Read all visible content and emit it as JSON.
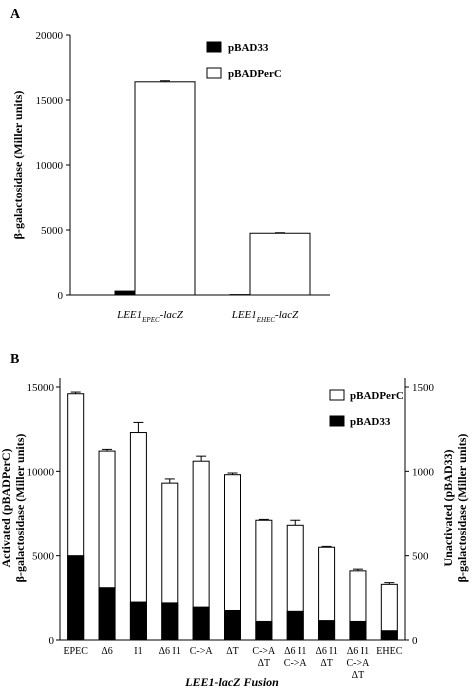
{
  "chart_data": [
    {
      "panel_label": "A",
      "type": "bar",
      "ylabel": "β-galactosidase (Miller units)",
      "ylim": [
        0,
        20000
      ],
      "yticks": [
        "0",
        "5000",
        "10000",
        "15000",
        "20000"
      ],
      "categories": [
        {
          "base": "LEE1",
          "sub": "EPEC",
          "suffix": "-lacZ"
        },
        {
          "base": "LEE1",
          "sub": "EHEC",
          "suffix": "-lacZ"
        }
      ],
      "series": [
        {
          "name": "pBAD33",
          "fill": "#000000",
          "values": [
            300,
            30
          ],
          "errors": [
            0,
            0
          ]
        },
        {
          "name": "pBADPerC",
          "fill": "#ffffff",
          "values": [
            16400,
            4750
          ],
          "errors": [
            80,
            40
          ]
        }
      ],
      "legend_position": "top-right",
      "grid": false
    },
    {
      "panel_label": "B",
      "type": "bar",
      "xlabel": "LEE1-lacZ Fusion",
      "ylabel_left": [
        "Activated (pBADPerC)",
        "β-galactosidase (Miller units)"
      ],
      "ylabel_right": [
        "Unactivated (pBAD33)",
        "β-galactosidase (Miller units)"
      ],
      "ylim_left": [
        0,
        15000
      ],
      "ylim_right": [
        0,
        1500
      ],
      "yticks_left": [
        "0",
        "5000",
        "10000",
        "15000"
      ],
      "yticks_right": [
        "0",
        "500",
        "1000",
        "1500"
      ],
      "categories": [
        [
          "EPEC"
        ],
        [
          "Δ6"
        ],
        [
          "I1"
        ],
        [
          "Δ6 I1"
        ],
        [
          "C->A"
        ],
        [
          "ΔT"
        ],
        [
          "C->A",
          "ΔT"
        ],
        [
          "Δ6 I1",
          "C->A"
        ],
        [
          "Δ6 I1",
          "ΔT"
        ],
        [
          "Δ6 I1",
          "C->A",
          "ΔT"
        ],
        [
          "EHEC"
        ]
      ],
      "series": [
        {
          "name": "pBADPerC",
          "axis": "left",
          "fill": "#ffffff",
          "values": [
            14600,
            11200,
            12300,
            9300,
            10600,
            9800,
            7100,
            6800,
            5500,
            4100,
            3300
          ],
          "errors": [
            100,
            100,
            600,
            250,
            300,
            100,
            50,
            300,
            50,
            100,
            100
          ]
        },
        {
          "name": "pBAD33",
          "axis": "right",
          "fill": "#000000",
          "values": [
            500,
            310,
            225,
            220,
            195,
            175,
            110,
            170,
            115,
            110,
            55
          ],
          "errors": [
            0,
            0,
            0,
            0,
            0,
            0,
            0,
            0,
            0,
            0,
            0
          ]
        }
      ],
      "legend_position": "top-right",
      "grid": false
    }
  ]
}
